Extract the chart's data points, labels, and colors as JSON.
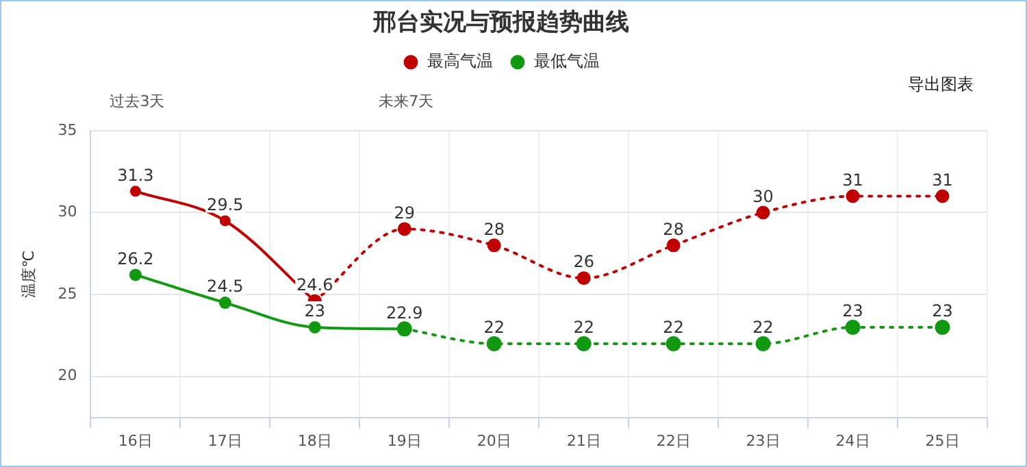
{
  "chart_data": {
    "type": "line",
    "title": "邢台实况与预报趋势曲线",
    "ylabel": "温度℃",
    "annotations": [
      "过去3天",
      "未来7天",
      "导出图表"
    ],
    "categories": [
      "16日",
      "17日",
      "18日",
      "19日",
      "20日",
      "21日",
      "22日",
      "23日",
      "24日",
      "25日"
    ],
    "series": [
      {
        "name": "最高气温",
        "color": "#c00000",
        "line_style": "solid",
        "values": [
          31.3,
          29.5,
          24.6,
          null,
          null,
          null,
          null,
          null,
          null,
          null
        ],
        "value_labels": [
          "31.3",
          "29.5",
          "24.6",
          null,
          null,
          null,
          null,
          null,
          null,
          null
        ]
      },
      {
        "name": "最低气温",
        "color": "#119911",
        "line_style": "solid",
        "values": [
          26.2,
          24.5,
          23,
          22.9,
          null,
          null,
          null,
          null,
          null,
          null
        ],
        "value_labels": [
          "26.2",
          "24.5",
          "23",
          "22.9",
          null,
          null,
          null,
          null,
          null,
          null
        ]
      },
      {
        "color": "#c00000",
        "line_style": "dotted",
        "values": [
          null,
          null,
          24.6,
          29,
          28,
          26,
          28,
          30,
          31,
          31
        ],
        "value_labels": [
          null,
          null,
          null,
          "29",
          "28",
          "26",
          "28",
          "30",
          "31",
          "31"
        ]
      },
      {
        "color": "#119911",
        "line_style": "dotted",
        "values": [
          null,
          null,
          null,
          22.9,
          22,
          22,
          22,
          22,
          23,
          23
        ],
        "value_labels": [
          null,
          null,
          null,
          null,
          "22",
          "22",
          "22",
          "22",
          "23",
          "23"
        ]
      }
    ],
    "ylim": [
      17.5,
      35
    ],
    "yticks": [
      20,
      25,
      30,
      35
    ],
    "grid": true,
    "legend": "top",
    "marker": "circle",
    "data_labels": false
  }
}
